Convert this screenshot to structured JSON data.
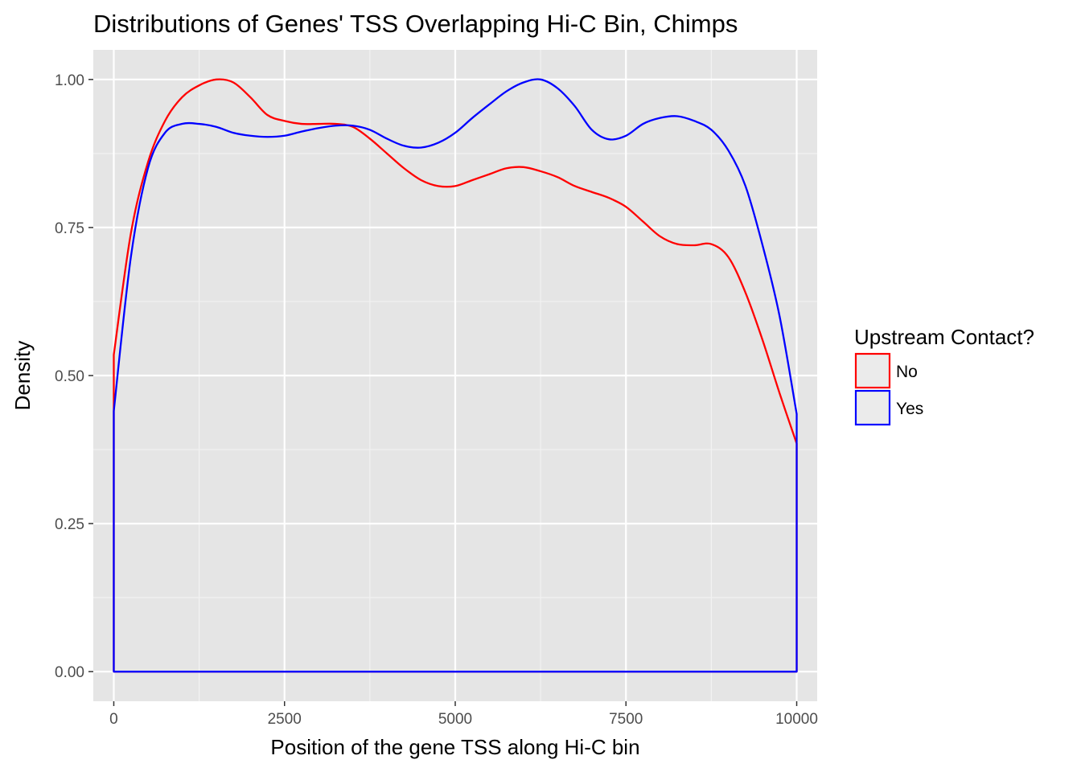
{
  "chart_data": {
    "type": "line",
    "subtype": "density",
    "title": "Distributions of Genes' TSS Overlapping Hi-C Bin, Chimps",
    "xlabel": "Position of the gene TSS along Hi-C bin",
    "ylabel": "Density",
    "xlim": [
      -300,
      10300
    ],
    "ylim": [
      -0.05,
      1.05
    ],
    "x_ticks": [
      0,
      2500,
      5000,
      7500,
      10000
    ],
    "x_tick_labels": [
      "0",
      "2500",
      "5000",
      "7500",
      "10000"
    ],
    "y_ticks": [
      0,
      0.25,
      0.5,
      0.75,
      1.0
    ],
    "y_tick_labels": [
      "0.00",
      "0.25",
      "0.50",
      "0.75",
      "1.00"
    ],
    "grid": true,
    "legend": {
      "title": "Upstream Contact?",
      "placement": "right"
    },
    "series": [
      {
        "name": "No",
        "color": "#ff0000",
        "x": [
          0,
          250,
          500,
          750,
          1000,
          1250,
          1500,
          1750,
          2000,
          2250,
          2500,
          2750,
          3000,
          3250,
          3500,
          3750,
          4000,
          4250,
          4500,
          4750,
          5000,
          5250,
          5500,
          5750,
          6000,
          6250,
          6500,
          6750,
          7000,
          7250,
          7500,
          7750,
          8000,
          8250,
          8500,
          8750,
          9000,
          9250,
          9500,
          9750,
          10000
        ],
        "values": [
          0.535,
          0.74,
          0.86,
          0.93,
          0.97,
          0.99,
          1.0,
          0.995,
          0.97,
          0.94,
          0.93,
          0.925,
          0.925,
          0.925,
          0.92,
          0.9,
          0.875,
          0.85,
          0.83,
          0.82,
          0.82,
          0.83,
          0.84,
          0.85,
          0.852,
          0.845,
          0.835,
          0.82,
          0.81,
          0.8,
          0.785,
          0.76,
          0.735,
          0.722,
          0.72,
          0.722,
          0.7,
          0.64,
          0.56,
          0.47,
          0.385
        ]
      },
      {
        "name": "Yes",
        "color": "#0000ff",
        "x": [
          0,
          250,
          500,
          750,
          1000,
          1250,
          1500,
          1750,
          2000,
          2250,
          2500,
          2750,
          3000,
          3250,
          3500,
          3750,
          4000,
          4250,
          4500,
          4750,
          5000,
          5250,
          5500,
          5750,
          6000,
          6250,
          6500,
          6750,
          7000,
          7250,
          7500,
          7750,
          8000,
          8250,
          8500,
          8750,
          9000,
          9250,
          9500,
          9750,
          10000
        ],
        "values": [
          0.44,
          0.7,
          0.85,
          0.91,
          0.925,
          0.925,
          0.92,
          0.91,
          0.905,
          0.903,
          0.905,
          0.912,
          0.918,
          0.922,
          0.922,
          0.915,
          0.9,
          0.888,
          0.885,
          0.893,
          0.91,
          0.935,
          0.958,
          0.98,
          0.995,
          1.0,
          0.985,
          0.955,
          0.915,
          0.899,
          0.905,
          0.925,
          0.935,
          0.938,
          0.93,
          0.915,
          0.88,
          0.82,
          0.72,
          0.6,
          0.435
        ]
      }
    ]
  }
}
